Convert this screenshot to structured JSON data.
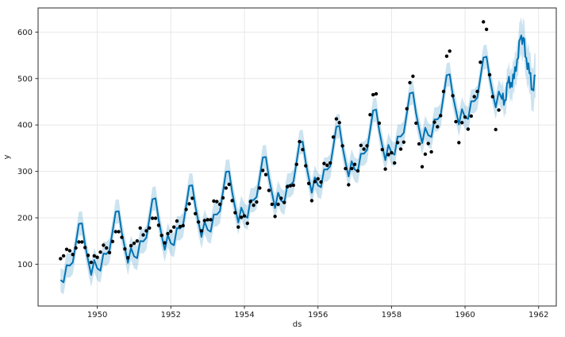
{
  "chart_data": {
    "type": "line",
    "title": "",
    "xlabel": "ds",
    "ylabel": "y",
    "grid": true,
    "legend": "none",
    "x_ticks": [
      1950,
      1952,
      1954,
      1956,
      1958,
      1960,
      1962
    ],
    "y_ticks": [
      100,
      200,
      300,
      400,
      500,
      600
    ],
    "x_range": [
      1948.39,
      1962.48
    ],
    "y_range": [
      10,
      652
    ],
    "colors": {
      "line": "#0072B2",
      "band": "rgba(0,114,178,0.2)",
      "points": "#000000",
      "grid": "#e7e7e7",
      "spine": "#2b2b2b",
      "text": "#1a1a1a",
      "background": "#ffffff"
    },
    "observed": {
      "name": "observed-points",
      "ds": [
        1949.0,
        1949.083,
        1949.167,
        1949.25,
        1949.333,
        1949.417,
        1949.5,
        1949.583,
        1949.667,
        1949.75,
        1949.833,
        1949.917,
        1950.0,
        1950.083,
        1950.167,
        1950.25,
        1950.333,
        1950.417,
        1950.5,
        1950.583,
        1950.667,
        1950.75,
        1950.833,
        1950.917,
        1951.0,
        1951.083,
        1951.167,
        1951.25,
        1951.333,
        1951.417,
        1951.5,
        1951.583,
        1951.667,
        1951.75,
        1951.833,
        1951.917,
        1952.0,
        1952.083,
        1952.167,
        1952.25,
        1952.333,
        1952.417,
        1952.5,
        1952.583,
        1952.667,
        1952.75,
        1952.833,
        1952.917,
        1953.0,
        1953.083,
        1953.167,
        1953.25,
        1953.333,
        1953.417,
        1953.5,
        1953.583,
        1953.667,
        1953.75,
        1953.833,
        1953.917,
        1954.0,
        1954.083,
        1954.167,
        1954.25,
        1954.333,
        1954.417,
        1954.5,
        1954.583,
        1954.667,
        1954.75,
        1954.833,
        1954.917,
        1955.0,
        1955.083,
        1955.167,
        1955.25,
        1955.333,
        1955.417,
        1955.5,
        1955.583,
        1955.667,
        1955.75,
        1955.833,
        1955.917,
        1956.0,
        1956.083,
        1956.167,
        1956.25,
        1956.333,
        1956.417,
        1956.5,
        1956.583,
        1956.667,
        1956.75,
        1956.833,
        1956.917,
        1957.0,
        1957.083,
        1957.167,
        1957.25,
        1957.333,
        1957.417,
        1957.5,
        1957.583,
        1957.667,
        1957.75,
        1957.833,
        1957.917,
        1958.0,
        1958.083,
        1958.167,
        1958.25,
        1958.333,
        1958.417,
        1958.5,
        1958.583,
        1958.667,
        1958.75,
        1958.833,
        1958.917,
        1959.0,
        1959.083,
        1959.167,
        1959.25,
        1959.333,
        1959.417,
        1959.5,
        1959.583,
        1959.667,
        1959.75,
        1959.833,
        1959.917,
        1960.0,
        1960.083,
        1960.167,
        1960.25,
        1960.333,
        1960.417,
        1960.5,
        1960.583,
        1960.667,
        1960.75,
        1960.833,
        1960.917
      ],
      "y": [
        112,
        118,
        132,
        129,
        121,
        135,
        148,
        148,
        136,
        119,
        104,
        118,
        115,
        126,
        141,
        135,
        125,
        149,
        170,
        170,
        158,
        133,
        114,
        140,
        145,
        150,
        178,
        163,
        172,
        178,
        199,
        199,
        184,
        162,
        146,
        166,
        171,
        180,
        193,
        181,
        183,
        218,
        230,
        242,
        209,
        191,
        172,
        194,
        196,
        196,
        236,
        235,
        229,
        243,
        264,
        272,
        237,
        211,
        180,
        201,
        204,
        188,
        235,
        227,
        234,
        264,
        302,
        293,
        259,
        229,
        203,
        229,
        242,
        233,
        267,
        269,
        270,
        315,
        364,
        347,
        312,
        274,
        237,
        278,
        284,
        277,
        317,
        313,
        318,
        374,
        413,
        405,
        355,
        306,
        271,
        306,
        315,
        301,
        356,
        348,
        355,
        422,
        465,
        467,
        404,
        347,
        305,
        336,
        340,
        318,
        362,
        348,
        363,
        435,
        491,
        505,
        404,
        359,
        310,
        337,
        360,
        342,
        406,
        396,
        420,
        472,
        548,
        559,
        463,
        407,
        362,
        405,
        417,
        391,
        419,
        461,
        472,
        535,
        622,
        606,
        508,
        461,
        390,
        432
      ]
    },
    "forecast": {
      "name": "yhat",
      "ds": [
        1949.0,
        1949.083,
        1949.167,
        1949.25,
        1949.333,
        1949.417,
        1949.5,
        1949.583,
        1949.667,
        1949.75,
        1949.833,
        1949.917,
        1950.0,
        1950.083,
        1950.167,
        1950.25,
        1950.333,
        1950.417,
        1950.5,
        1950.583,
        1950.667,
        1950.75,
        1950.833,
        1950.917,
        1951.0,
        1951.083,
        1951.167,
        1951.25,
        1951.333,
        1951.417,
        1951.5,
        1951.583,
        1951.667,
        1951.75,
        1951.833,
        1951.917,
        1952.0,
        1952.083,
        1952.167,
        1952.25,
        1952.333,
        1952.417,
        1952.5,
        1952.583,
        1952.667,
        1952.75,
        1952.833,
        1952.917,
        1953.0,
        1953.083,
        1953.167,
        1953.25,
        1953.333,
        1953.417,
        1953.5,
        1953.583,
        1953.667,
        1953.75,
        1953.833,
        1953.917,
        1954.0,
        1954.083,
        1954.167,
        1954.25,
        1954.333,
        1954.417,
        1954.5,
        1954.583,
        1954.667,
        1954.75,
        1954.833,
        1954.917,
        1955.0,
        1955.083,
        1955.167,
        1955.25,
        1955.333,
        1955.417,
        1955.5,
        1955.583,
        1955.667,
        1955.75,
        1955.833,
        1955.917,
        1956.0,
        1956.083,
        1956.167,
        1956.25,
        1956.333,
        1956.417,
        1956.5,
        1956.583,
        1956.667,
        1956.75,
        1956.833,
        1956.917,
        1957.0,
        1957.083,
        1957.167,
        1957.25,
        1957.333,
        1957.417,
        1957.5,
        1957.583,
        1957.667,
        1957.75,
        1957.833,
        1957.917,
        1958.0,
        1958.083,
        1958.167,
        1958.25,
        1958.333,
        1958.417,
        1958.5,
        1958.583,
        1958.667,
        1958.75,
        1958.833,
        1958.917,
        1959.0,
        1959.083,
        1959.167,
        1959.25,
        1959.333,
        1959.417,
        1959.5,
        1959.583,
        1959.667,
        1959.75,
        1959.833,
        1959.917,
        1960.0,
        1960.083,
        1960.167,
        1960.25,
        1960.333,
        1960.417,
        1960.5,
        1960.583,
        1960.667,
        1960.75,
        1960.833,
        1960.917,
        1961.0,
        1961.028,
        1961.056,
        1961.083,
        1961.111,
        1961.139,
        1961.167,
        1961.194,
        1961.222,
        1961.25,
        1961.278,
        1961.306,
        1961.333,
        1961.361,
        1961.389,
        1961.417,
        1961.444,
        1961.472,
        1961.5,
        1961.528,
        1961.556,
        1961.583,
        1961.611,
        1961.639,
        1961.667,
        1961.694,
        1961.722,
        1961.75,
        1961.778,
        1961.806,
        1961.833,
        1961.861,
        1961.889,
        1961.917
      ],
      "yhat": [
        66,
        61,
        98,
        97,
        104,
        145,
        187,
        188,
        142,
        109,
        77,
        109,
        91,
        86,
        123,
        122,
        130,
        171,
        213,
        214,
        168,
        135,
        103,
        135,
        117,
        113,
        150,
        149,
        157,
        198,
        240,
        242,
        196,
        162,
        131,
        163,
        145,
        141,
        178,
        177,
        185,
        226,
        269,
        270,
        225,
        191,
        159,
        192,
        174,
        170,
        207,
        207,
        214,
        256,
        299,
        300,
        255,
        221,
        190,
        222,
        205,
        200,
        238,
        238,
        245,
        287,
        330,
        331,
        286,
        253,
        221,
        254,
        237,
        232,
        270,
        270,
        278,
        320,
        362,
        364,
        319,
        286,
        254,
        287,
        270,
        266,
        304,
        304,
        311,
        353,
        396,
        398,
        353,
        320,
        289,
        322,
        304,
        300,
        338,
        338,
        346,
        388,
        431,
        433,
        388,
        355,
        324,
        357,
        340,
        336,
        375,
        375,
        383,
        425,
        468,
        470,
        425,
        392,
        361,
        394,
        378,
        374,
        412,
        412,
        420,
        463,
        507,
        509,
        464,
        432,
        401,
        434,
        416,
        413,
        451,
        451,
        459,
        502,
        545,
        547,
        503,
        469,
        438,
        472,
        456,
        468,
        443,
        453,
        454,
        490,
        491,
        504,
        480,
        491,
        482,
        509,
        500,
        525,
        516,
        541,
        544,
        581,
        586,
        593,
        574,
        588,
        585,
        547,
        544,
        520,
        533,
        511,
        512,
        476,
        477,
        474,
        507,
        506
      ],
      "yhat_lower": [
        40,
        35,
        72,
        71,
        78,
        119,
        161,
        162,
        116,
        83,
        51,
        83,
        65,
        60,
        97,
        96,
        104,
        145,
        187,
        188,
        142,
        109,
        77,
        109,
        91,
        87,
        124,
        123,
        131,
        172,
        214,
        216,
        170,
        136,
        105,
        137,
        119,
        115,
        152,
        151,
        159,
        200,
        243,
        244,
        199,
        165,
        133,
        166,
        148,
        144,
        181,
        181,
        188,
        230,
        273,
        274,
        229,
        195,
        164,
        196,
        179,
        174,
        212,
        212,
        219,
        261,
        304,
        305,
        260,
        227,
        195,
        228,
        211,
        206,
        244,
        244,
        252,
        294,
        336,
        338,
        293,
        260,
        228,
        261,
        244,
        240,
        278,
        278,
        285,
        327,
        370,
        372,
        327,
        294,
        263,
        296,
        278,
        274,
        312,
        312,
        320,
        362,
        405,
        407,
        362,
        329,
        298,
        331,
        314,
        310,
        349,
        349,
        357,
        399,
        442,
        444,
        399,
        366,
        335,
        368,
        352,
        348,
        386,
        386,
        394,
        437,
        481,
        483,
        438,
        406,
        375,
        408,
        390,
        387,
        425,
        425,
        433,
        476,
        519,
        521,
        477,
        443,
        412,
        446,
        428,
        439,
        414,
        423,
        424,
        459,
        459,
        472,
        447,
        458,
        448,
        474,
        465,
        489,
        479,
        504,
        506,
        543,
        547,
        553,
        534,
        547,
        544,
        505,
        501,
        477,
        489,
        467,
        467,
        430,
        431,
        427,
        459,
        458
      ],
      "yhat_upper": [
        92,
        87,
        124,
        123,
        130,
        171,
        213,
        214,
        168,
        135,
        103,
        135,
        117,
        112,
        149,
        148,
        156,
        197,
        239,
        240,
        194,
        161,
        129,
        161,
        143,
        139,
        176,
        175,
        183,
        224,
        266,
        268,
        222,
        188,
        157,
        189,
        171,
        167,
        204,
        203,
        211,
        252,
        295,
        296,
        251,
        217,
        185,
        218,
        200,
        196,
        233,
        233,
        240,
        282,
        325,
        326,
        281,
        247,
        216,
        248,
        231,
        226,
        264,
        264,
        271,
        313,
        356,
        357,
        312,
        279,
        247,
        280,
        263,
        258,
        296,
        296,
        304,
        346,
        388,
        390,
        345,
        312,
        280,
        313,
        296,
        292,
        330,
        330,
        337,
        379,
        422,
        424,
        379,
        346,
        315,
        348,
        330,
        326,
        364,
        364,
        372,
        414,
        457,
        459,
        414,
        381,
        350,
        383,
        366,
        362,
        401,
        401,
        409,
        451,
        494,
        496,
        451,
        418,
        387,
        420,
        404,
        400,
        438,
        438,
        446,
        489,
        533,
        535,
        490,
        458,
        427,
        460,
        442,
        439,
        477,
        477,
        485,
        528,
        571,
        573,
        529,
        495,
        464,
        498,
        484,
        497,
        472,
        483,
        484,
        521,
        523,
        536,
        513,
        524,
        516,
        544,
        535,
        561,
        553,
        578,
        582,
        619,
        625,
        633,
        614,
        629,
        626,
        589,
        587,
        563,
        577,
        556,
        557,
        522,
        523,
        521,
        555,
        554
      ]
    }
  }
}
